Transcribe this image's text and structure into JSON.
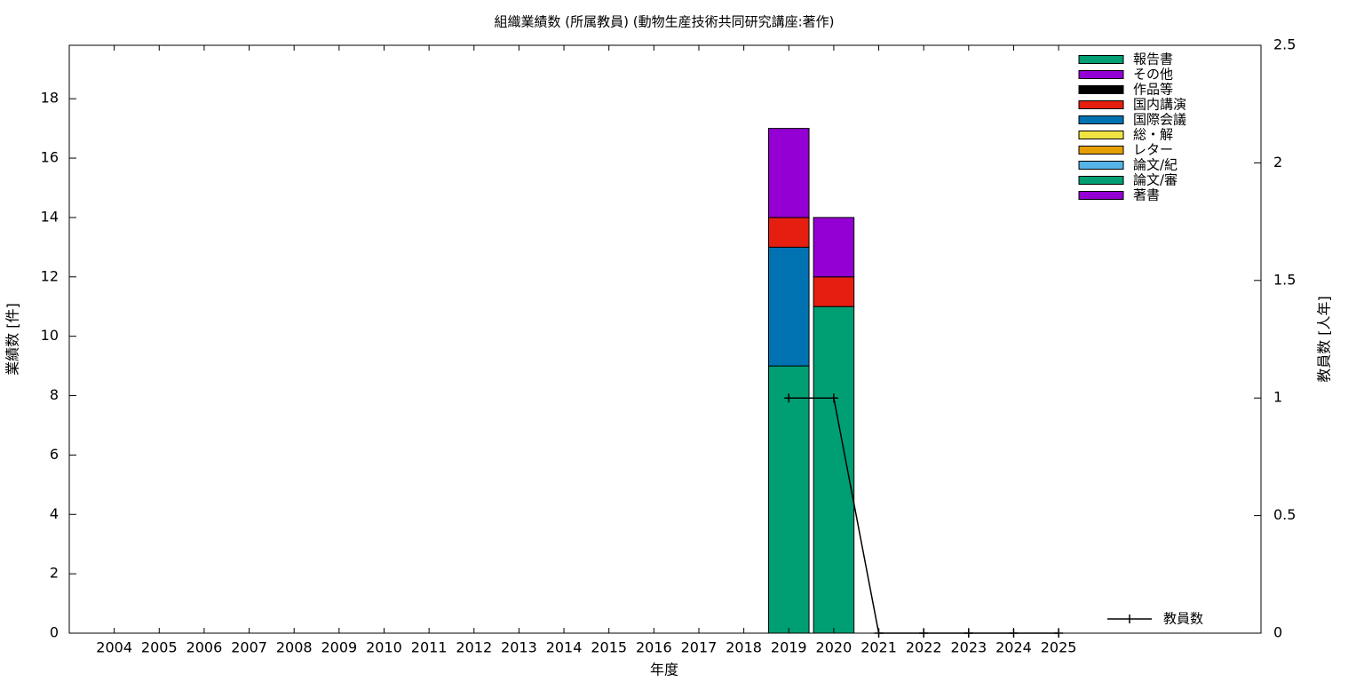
{
  "chart_data": {
    "type": "bar",
    "stacked": true,
    "title": "組織業績数 (所属教員) (動物生産技術共同研究講座:著作)",
    "x_label": "年度",
    "y_label": "業績数 [件]",
    "y2_label": "教員数 [人年]",
    "x": [
      2004,
      2005,
      2006,
      2007,
      2008,
      2009,
      2010,
      2011,
      2012,
      2013,
      2014,
      2015,
      2016,
      2017,
      2018,
      2019,
      2020,
      2021,
      2022,
      2023,
      2024,
      2025
    ],
    "xlim": [
      2003,
      2029.5
    ],
    "xticks": [
      2004,
      2005,
      2006,
      2007,
      2008,
      2009,
      2010,
      2011,
      2012,
      2013,
      2014,
      2015,
      2016,
      2017,
      2018,
      2019,
      2020,
      2021,
      2022,
      2023,
      2024,
      2025
    ],
    "ylim": [
      0,
      19.8
    ],
    "yticks": [
      0,
      2,
      4,
      6,
      8,
      10,
      12,
      14,
      16,
      18
    ],
    "y2lim": [
      0,
      2.5
    ],
    "y2ticks": [
      0,
      0.5,
      1,
      1.5,
      2,
      2.5
    ],
    "legend_position": "top-right",
    "series": [
      {
        "name": "著書",
        "color": "#9400d3",
        "values": [
          0,
          0,
          0,
          0,
          0,
          0,
          0,
          0,
          0,
          0,
          0,
          0,
          0,
          0,
          0,
          0,
          0,
          0,
          0,
          0,
          0,
          0
        ]
      },
      {
        "name": "論文/審",
        "color": "#009e73",
        "values": [
          0,
          0,
          0,
          0,
          0,
          0,
          0,
          0,
          0,
          0,
          0,
          0,
          0,
          0,
          0,
          9,
          11,
          0,
          0,
          0,
          0,
          0
        ]
      },
      {
        "name": "論文/紀",
        "color": "#56b4e9",
        "values": [
          0,
          0,
          0,
          0,
          0,
          0,
          0,
          0,
          0,
          0,
          0,
          0,
          0,
          0,
          0,
          0,
          0,
          0,
          0,
          0,
          0,
          0
        ]
      },
      {
        "name": "レター",
        "color": "#e69f00",
        "values": [
          0,
          0,
          0,
          0,
          0,
          0,
          0,
          0,
          0,
          0,
          0,
          0,
          0,
          0,
          0,
          0,
          0,
          0,
          0,
          0,
          0,
          0
        ]
      },
      {
        "name": "総・解",
        "color": "#f0e442",
        "values": [
          0,
          0,
          0,
          0,
          0,
          0,
          0,
          0,
          0,
          0,
          0,
          0,
          0,
          0,
          0,
          0,
          0,
          0,
          0,
          0,
          0,
          0
        ]
      },
      {
        "name": "国際会議",
        "color": "#0072b2",
        "values": [
          0,
          0,
          0,
          0,
          0,
          0,
          0,
          0,
          0,
          0,
          0,
          0,
          0,
          0,
          0,
          4,
          0,
          0,
          0,
          0,
          0,
          0
        ]
      },
      {
        "name": "国内講演",
        "color": "#e51e10",
        "values": [
          0,
          0,
          0,
          0,
          0,
          0,
          0,
          0,
          0,
          0,
          0,
          0,
          0,
          0,
          0,
          1,
          1,
          0,
          0,
          0,
          0,
          0
        ]
      },
      {
        "name": "作品等",
        "color": "#000000",
        "values": [
          0,
          0,
          0,
          0,
          0,
          0,
          0,
          0,
          0,
          0,
          0,
          0,
          0,
          0,
          0,
          0,
          0,
          0,
          0,
          0,
          0,
          0
        ]
      },
      {
        "name": "その他",
        "color": "#9400d3",
        "values": [
          0,
          0,
          0,
          0,
          0,
          0,
          0,
          0,
          0,
          0,
          0,
          0,
          0,
          0,
          0,
          3,
          2,
          0,
          0,
          0,
          0,
          0
        ]
      },
      {
        "name": "報告書",
        "color": "#009e73",
        "values": [
          0,
          0,
          0,
          0,
          0,
          0,
          0,
          0,
          0,
          0,
          0,
          0,
          0,
          0,
          0,
          0,
          0,
          0,
          0,
          0,
          0,
          0
        ]
      },
      {
        "name": "教員数",
        "type": "line",
        "axis": "y2",
        "color": "#000000",
        "values": [
          null,
          null,
          null,
          null,
          null,
          null,
          null,
          null,
          null,
          null,
          null,
          null,
          null,
          null,
          null,
          1,
          1,
          0,
          0,
          0,
          0,
          0
        ]
      }
    ]
  }
}
